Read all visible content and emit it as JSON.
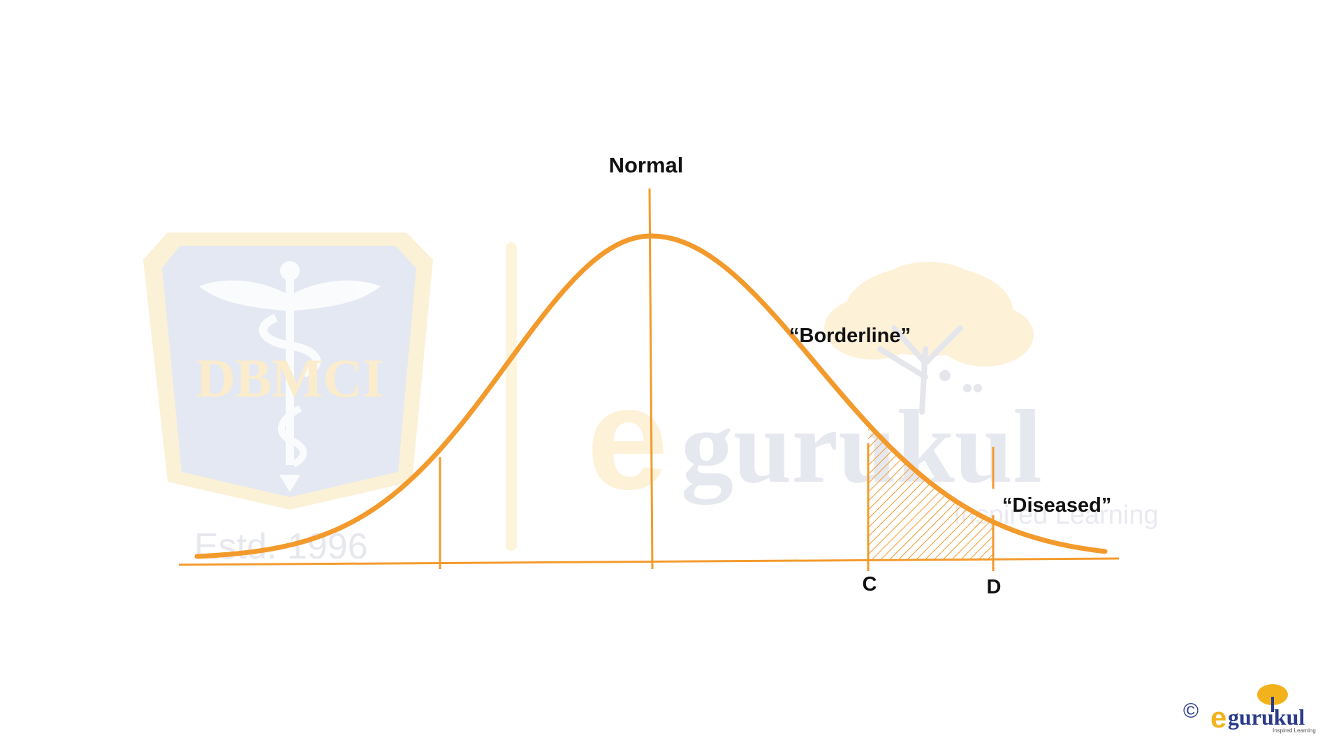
{
  "colors": {
    "curve": "#f39a2c",
    "text": "#111111",
    "watermark_blue": "#dde3ef",
    "watermark_gold": "#fbeccc",
    "logo_navy": "#2a3a8c",
    "logo_gold": "#f2b21c"
  },
  "diagram": {
    "type": "normal-distribution-cutoff",
    "labels": {
      "normal": "Normal",
      "borderline": "“Borderline”",
      "diseased": "“Diseased”",
      "point_c": "C",
      "point_d": "D"
    }
  },
  "watermark": {
    "shield_text": "DBMCI",
    "established": "Estd. 1996",
    "brand_initial": "e",
    "brand_rest": "gurukul",
    "tagline": "Inspired Learning"
  },
  "footer": {
    "copyright_symbol": "©",
    "logo_initial": "e",
    "logo_rest": "gurukul",
    "logo_tagline": "Inspired Learning"
  }
}
